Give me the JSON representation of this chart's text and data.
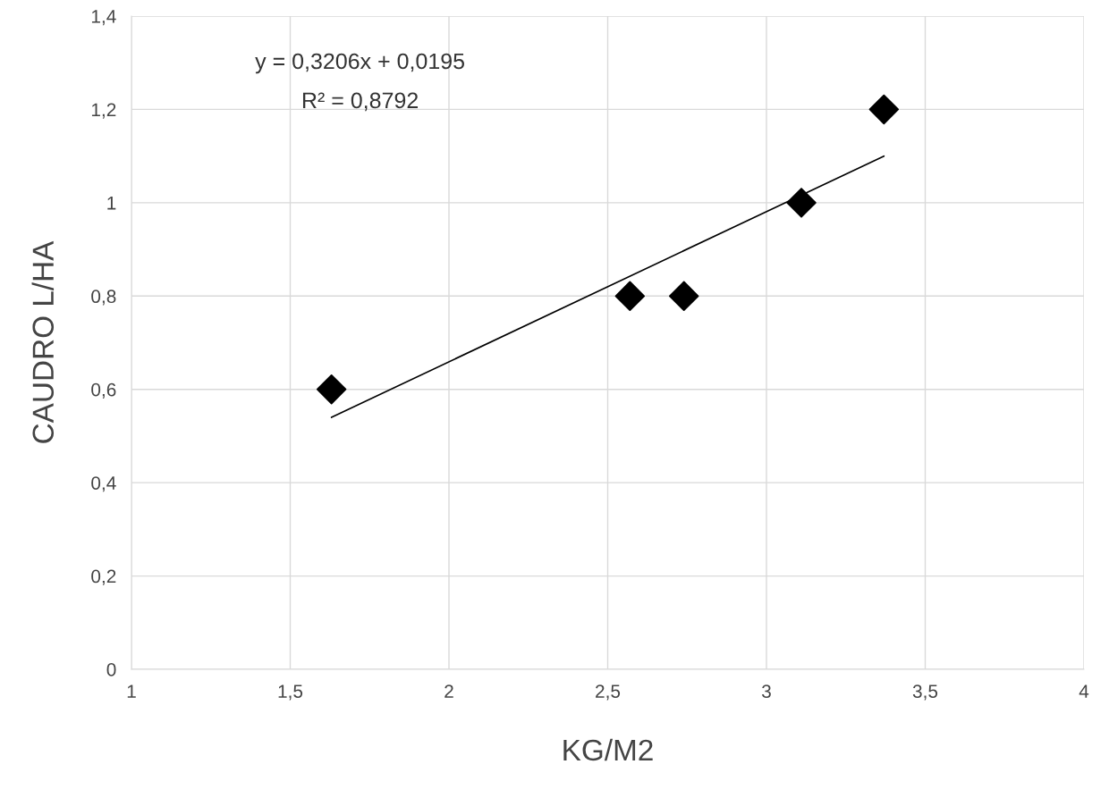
{
  "chart_data": {
    "type": "scatter",
    "xlabel": "KG/M2",
    "ylabel": "CAUDRO L/HA",
    "annotations": [
      "y = 0,3206x + 0,0195",
      "R² = 0,8792"
    ],
    "series": [
      {
        "color": "#000000",
        "marker": "diamond",
        "x": [
          1.63,
          2.57,
          2.74,
          3.11,
          3.37
        ],
        "values": [
          0.6,
          0.8,
          0.8,
          1.0,
          1.2
        ]
      },
      {
        "type": "line",
        "color": "#000000",
        "marker": "none",
        "line_style": "solid",
        "x": [
          1.63,
          3.37
        ],
        "values": [
          0.54,
          1.1
        ]
      }
    ],
    "xlim": [
      1,
      4
    ],
    "xticks": [
      1,
      {
        "value": 1.5,
        "label": "1,5"
      },
      2,
      {
        "value": 2.5,
        "label": "2,5"
      },
      3,
      {
        "value": 3.5,
        "label": "3,5"
      },
      4
    ],
    "ylim": [
      0,
      1.4
    ],
    "yticks": [
      0,
      {
        "value": 0.2,
        "label": "0,2"
      },
      {
        "value": 0.4,
        "label": "0,4"
      },
      {
        "value": 0.6,
        "label": "0,6"
      },
      {
        "value": 0.8,
        "label": "0,8"
      },
      1,
      {
        "value": 1.2,
        "label": "1,2"
      },
      {
        "value": 1.4,
        "label": "1,4"
      }
    ],
    "grid": true
  }
}
